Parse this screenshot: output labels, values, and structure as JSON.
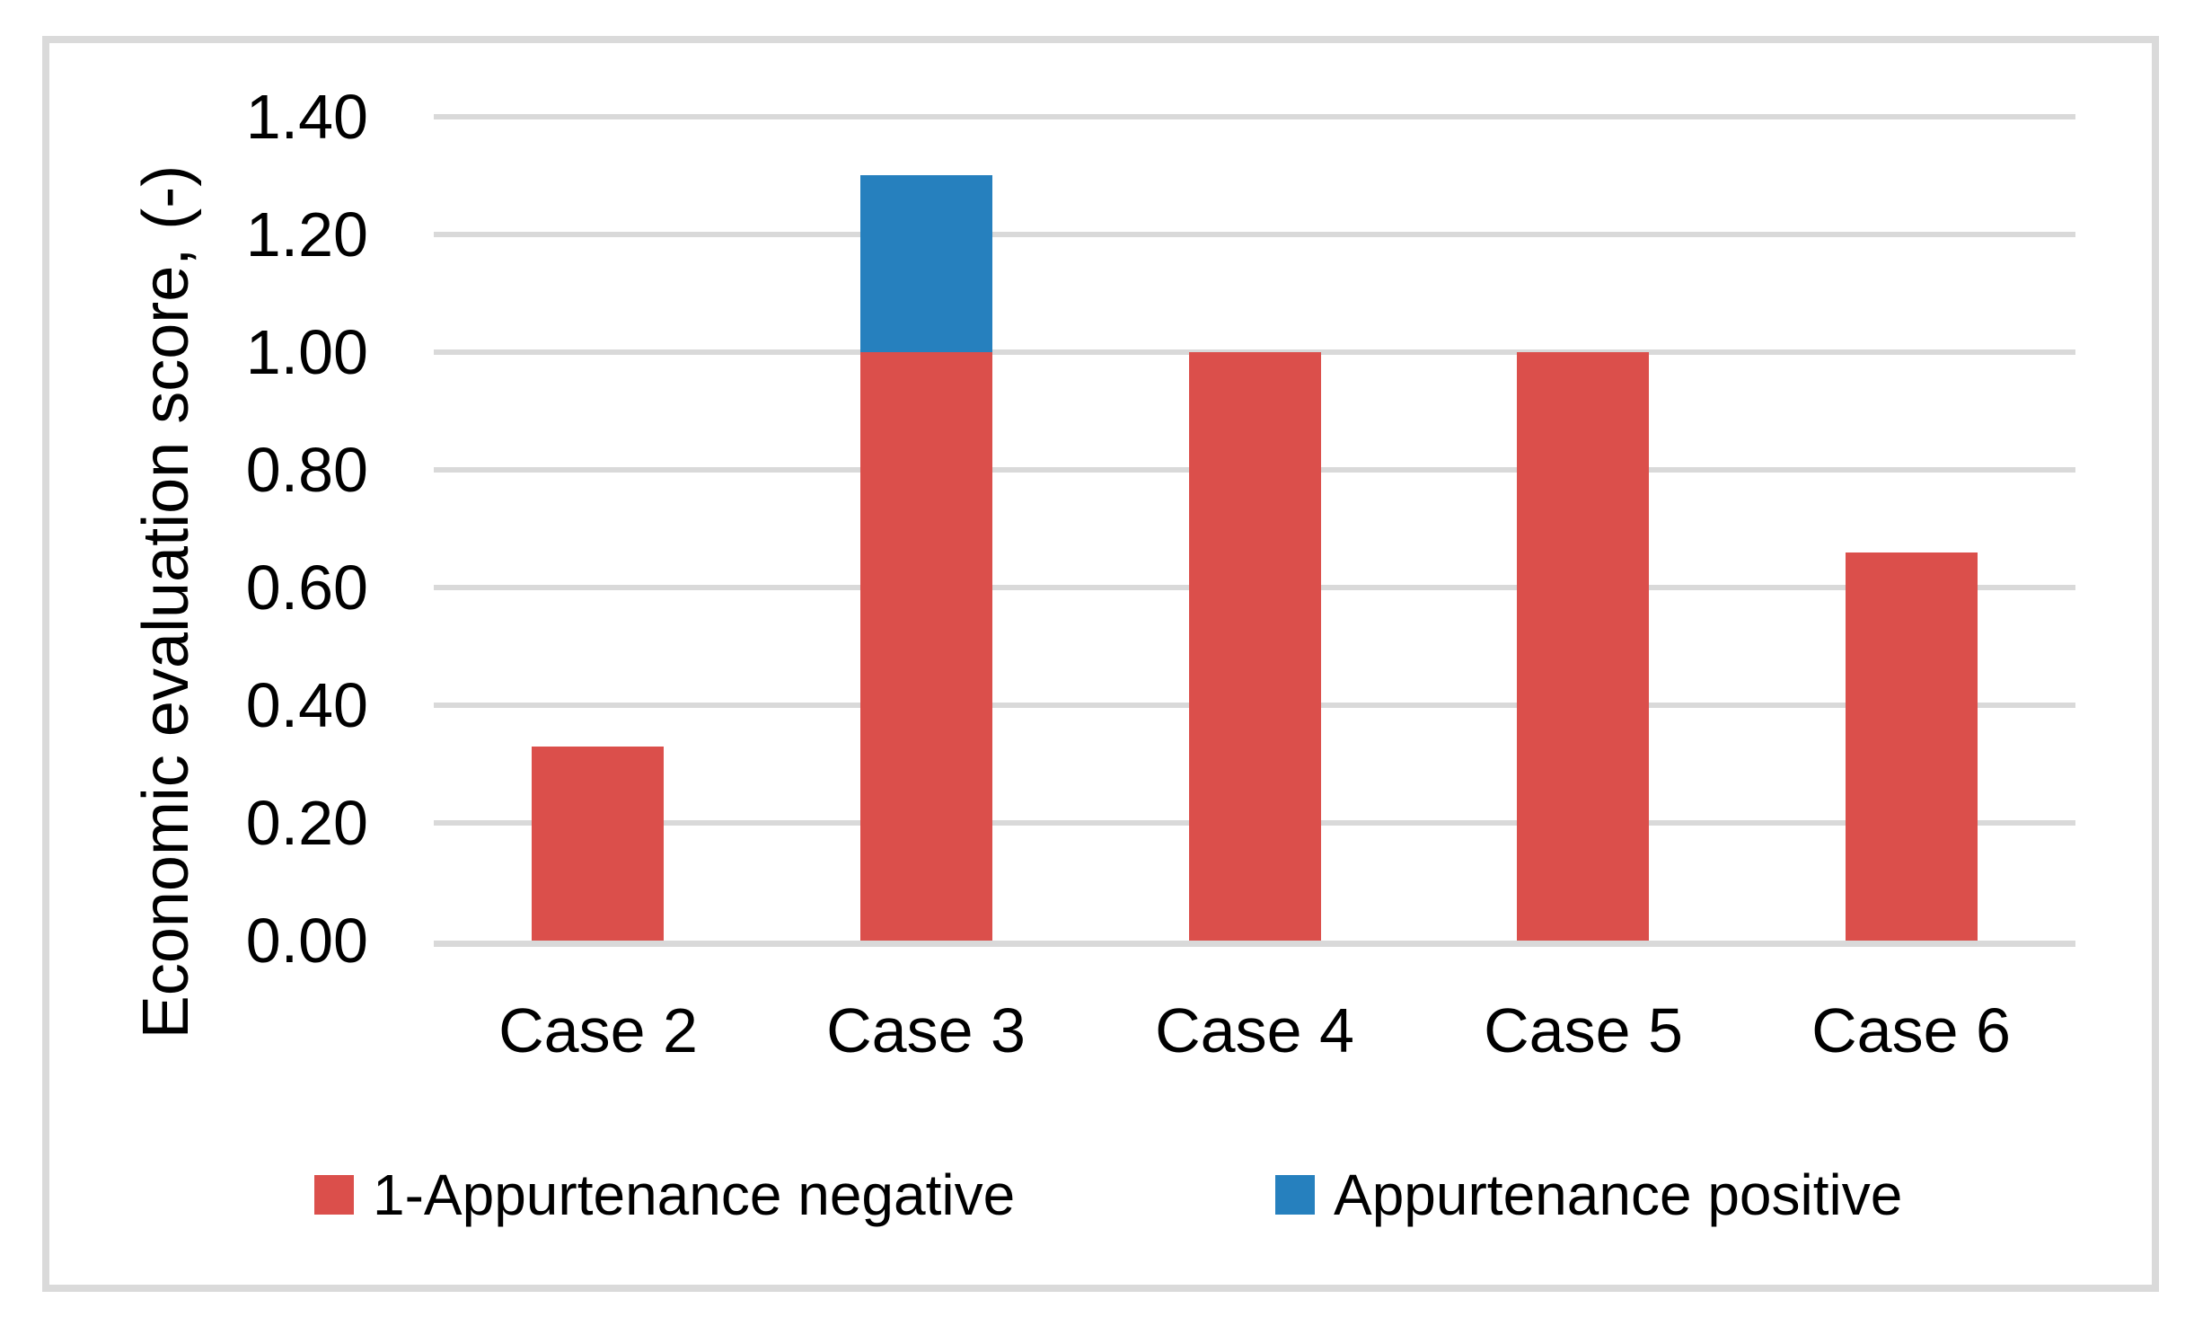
{
  "chart_data": {
    "type": "bar",
    "stacked": true,
    "title": "",
    "categories": [
      "Case 2",
      "Case 3",
      "Case 4",
      "Case 5",
      "Case 6"
    ],
    "series": [
      {
        "name": "1-Appurtenance negative",
        "color": "#DB4F4B",
        "values": [
          0.33,
          1.0,
          1.0,
          1.0,
          0.66
        ]
      },
      {
        "name": "Appurtenance positive",
        "color": "#2680BE",
        "values": [
          0.0,
          0.3,
          0.0,
          0.0,
          0.0
        ]
      }
    ],
    "xlabel": "",
    "ylabel": "Economic evaluation score, (-)",
    "ylim": [
      0.0,
      1.4
    ],
    "yticks": [
      0.0,
      0.2,
      0.4,
      0.6,
      0.8,
      1.0,
      1.2,
      1.4
    ],
    "ytick_labels": [
      "0.00",
      "0.20",
      "0.40",
      "0.60",
      "0.80",
      "1.00",
      "1.20",
      "1.40"
    ],
    "grid": true,
    "gridline_color": "#D9D9D9",
    "axis_line_color": "#D9D9D9",
    "border_color": "#DADADA",
    "text_color": "#000000",
    "legend_position": "bottom"
  }
}
